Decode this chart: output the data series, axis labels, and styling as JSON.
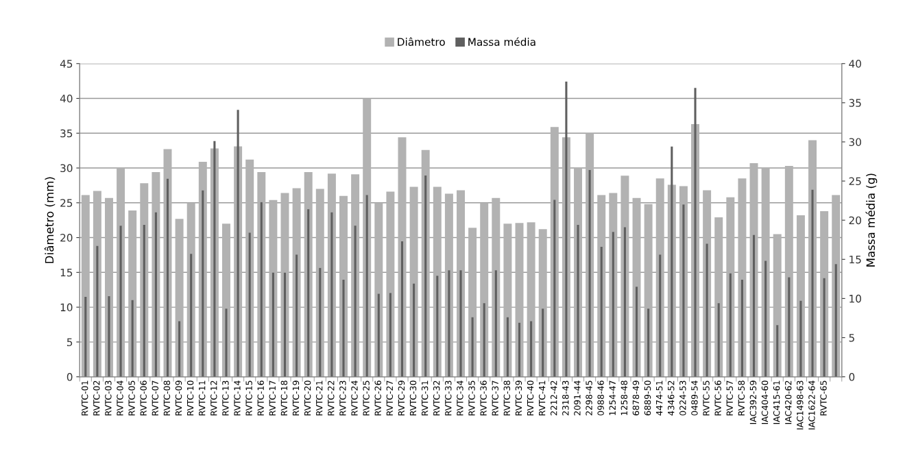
{
  "chart_data": {
    "type": "bar",
    "xlabel": null,
    "ylabel": "Diâmetro (mm)",
    "y2label": "Massa média (g)",
    "categories": [
      "RVTC-01",
      "RVTC-02",
      "RVTC-03",
      "RVTC-04",
      "RVTC-05",
      "RVTC-06",
      "RVTC-07",
      "RVTC-08",
      "RVTC-09",
      "RVTC-10",
      "RVTC-11",
      "RVTC-12",
      "RVTC-13",
      "RVTC-14",
      "RVTC-15",
      "RVTC-16",
      "RVTC-17",
      "RVTC-18",
      "RVTC-19",
      "RVTC-20",
      "RVTC-21",
      "RVTC-22",
      "RVTC-23",
      "RVTC-24",
      "RVTC-25",
      "RVTC-26",
      "RVTC-27",
      "RVTC-29",
      "RVTC-30",
      "RVTC-31",
      "RVTC-32",
      "RVTC-33",
      "RVTC-34",
      "RVTC-35",
      "RVTC-36",
      "RVTC-37",
      "RVTC-38",
      "RVTC-39",
      "RVTC-40",
      "RVTC-41",
      "2212-42",
      "2318-43",
      "2091-44",
      "2298-45",
      "0988-46",
      "1254-47",
      "1258-48",
      "6878-49",
      "6889-50",
      "4474-51",
      "4346-52",
      "0224-53",
      "0489-54",
      "RVTC-55",
      "RVTC-56",
      "RVTC-57",
      "RVTC-58",
      "IAC392-59",
      "IAC404-60",
      "IAC415-61",
      "IAC420-62",
      "IAC1498-63",
      "IAC1622-64",
      "RVTC-65",
      null
    ],
    "series": [
      {
        "name": "Diâmetro",
        "color": "#b2b2b2",
        "values": [
          26.1,
          26.7,
          25.7,
          30.1,
          23.9,
          27.8,
          29.4,
          32.7,
          22.7,
          25.0,
          30.9,
          32.8,
          22.0,
          33.1,
          31.2,
          29.4,
          25.4,
          26.4,
          27.1,
          29.4,
          27.0,
          29.2,
          26.0,
          29.1,
          40.0,
          25.0,
          26.6,
          34.4,
          27.3,
          32.6,
          27.3,
          26.3,
          26.8,
          21.4,
          25.0,
          25.7,
          22.0,
          22.1,
          22.2,
          21.2,
          35.9,
          34.4,
          29.9,
          35.0,
          26.1,
          26.4,
          28.9,
          25.7,
          24.8,
          28.5,
          27.6,
          27.4,
          36.3,
          26.8,
          22.9,
          25.8,
          28.5,
          30.7,
          30.1,
          20.5,
          30.3,
          23.2,
          34.0,
          23.8,
          26.1
        ]
      },
      {
        "name": "Massa média",
        "color": "#5f5f5f",
        "axis": "y2",
        "values": [
          10.2,
          16.7,
          10.3,
          19.3,
          9.8,
          19.4,
          21.0,
          25.3,
          7.1,
          15.7,
          23.8,
          30.1,
          8.7,
          34.1,
          18.4,
          22.3,
          13.3,
          13.3,
          15.6,
          21.4,
          13.9,
          21.0,
          12.4,
          19.3,
          23.2,
          10.6,
          10.7,
          17.3,
          11.9,
          25.7,
          12.9,
          13.6,
          13.6,
          7.6,
          9.4,
          13.6,
          7.6,
          6.9,
          7.1,
          8.7,
          22.6,
          37.7,
          19.4,
          26.4,
          16.6,
          18.5,
          19.1,
          11.5,
          8.7,
          15.6,
          29.4,
          22.0,
          36.9,
          17.0,
          9.4,
          13.2,
          12.4,
          18.1,
          14.8,
          6.6,
          12.7,
          9.7,
          23.9,
          12.6,
          14.4
        ]
      }
    ],
    "ylim": [
      0,
      45
    ],
    "yticks": [
      0,
      5,
      10,
      15,
      20,
      25,
      30,
      35,
      40,
      45
    ],
    "y2lim": [
      0,
      40
    ],
    "y2ticks": [
      0,
      5,
      10,
      15,
      20,
      25,
      30,
      35,
      40
    ],
    "grid": "y",
    "legend": "top"
  }
}
